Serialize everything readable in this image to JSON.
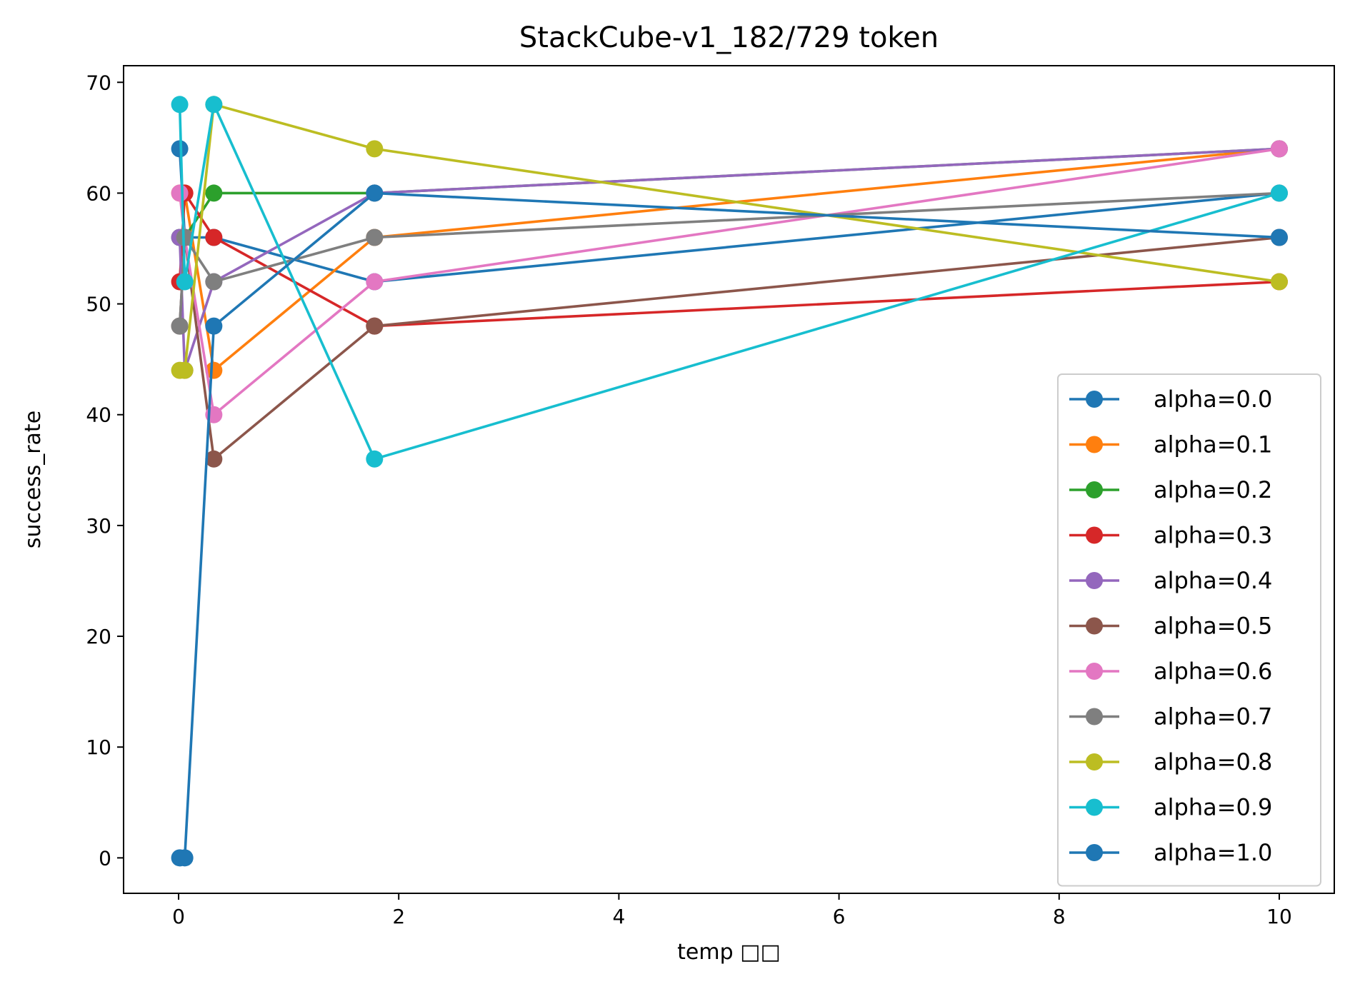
{
  "chart_data": {
    "type": "line",
    "title": "StackCube-v1_182/729 token",
    "xlabel": "temp □□",
    "ylabel": "success_rate",
    "xlim": [
      -0.5,
      10.5
    ],
    "ylim": [
      -3.2,
      71.5
    ],
    "xticks": [
      0,
      2,
      4,
      6,
      8,
      10
    ],
    "yticks": [
      0,
      10,
      20,
      30,
      40,
      50,
      60,
      70
    ],
    "grid": false,
    "legend_position": "lower-right",
    "x": [
      0.01,
      0.056,
      0.32,
      1.78,
      10
    ],
    "series": [
      {
        "name": "alpha=0.0",
        "color": "#1f77b4",
        "values": [
          64,
          56,
          56,
          52,
          60
        ]
      },
      {
        "name": "alpha=0.1",
        "color": "#ff7f0e",
        "values": [
          60,
          60,
          44,
          56,
          64
        ]
      },
      {
        "name": "alpha=0.2",
        "color": "#2ca02c",
        "values": [
          56,
          56,
          60,
          60,
          64
        ]
      },
      {
        "name": "alpha=0.3",
        "color": "#d62728",
        "values": [
          52,
          60,
          56,
          48,
          52
        ]
      },
      {
        "name": "alpha=0.4",
        "color": "#9467bd",
        "values": [
          56,
          44,
          52,
          60,
          64
        ]
      },
      {
        "name": "alpha=0.5",
        "color": "#8c564b",
        "values": [
          48,
          56,
          36,
          48,
          56
        ]
      },
      {
        "name": "alpha=0.6",
        "color": "#e377c2",
        "values": [
          60,
          56,
          40,
          52,
          64
        ]
      },
      {
        "name": "alpha=0.7",
        "color": "#7f7f7f",
        "values": [
          48,
          56,
          52,
          56,
          60
        ]
      },
      {
        "name": "alpha=0.8",
        "color": "#bcbd22",
        "values": [
          44,
          44,
          68,
          64,
          52
        ]
      },
      {
        "name": "alpha=0.9",
        "color": "#17becf",
        "values": [
          68,
          52,
          68,
          36,
          60
        ]
      },
      {
        "name": "alpha=1.0",
        "color": "#1f77b4",
        "values": [
          0,
          0,
          48,
          60,
          56
        ]
      }
    ]
  }
}
